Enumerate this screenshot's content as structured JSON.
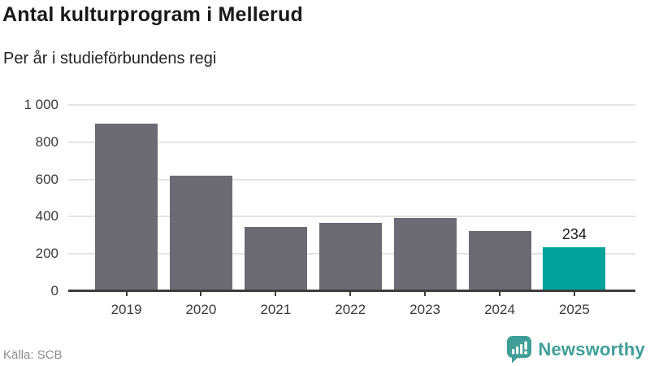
{
  "header": {
    "title": "Antal kulturprogram i Mellerud",
    "subtitle": "Per år i studieförbundens regi"
  },
  "footer": {
    "source": "Källa: SCB",
    "brand": "Newsworthy",
    "logo_icon": "newsworthy-speech-bubble-bar-chart-icon",
    "brand_color": "#3f9e98"
  },
  "chart_data": {
    "type": "bar",
    "title": "Antal kulturprogram i Mellerud",
    "subtitle": "Per år i studieförbundens regi",
    "categories": [
      "2019",
      "2020",
      "2021",
      "2022",
      "2023",
      "2024",
      "2025"
    ],
    "values": [
      900,
      620,
      345,
      365,
      395,
      325,
      234
    ],
    "highlight_index": 6,
    "value_labels": [
      {
        "index": 6,
        "text": "234"
      }
    ],
    "xlabel": "",
    "ylabel": "",
    "ylim": [
      0,
      1000
    ],
    "yticks": [
      0,
      200,
      400,
      600,
      800,
      1000
    ],
    "ytick_labels": [
      "0",
      "200",
      "400",
      "600",
      "800",
      "1 000"
    ],
    "grid": "horizontal",
    "legend": "none",
    "bar_color": "#6c6b74",
    "highlight_color": "#00a29a",
    "gridline_color": "#e4e4e4",
    "axis_color": "#3d3d3d",
    "source": "Källa: SCB"
  }
}
